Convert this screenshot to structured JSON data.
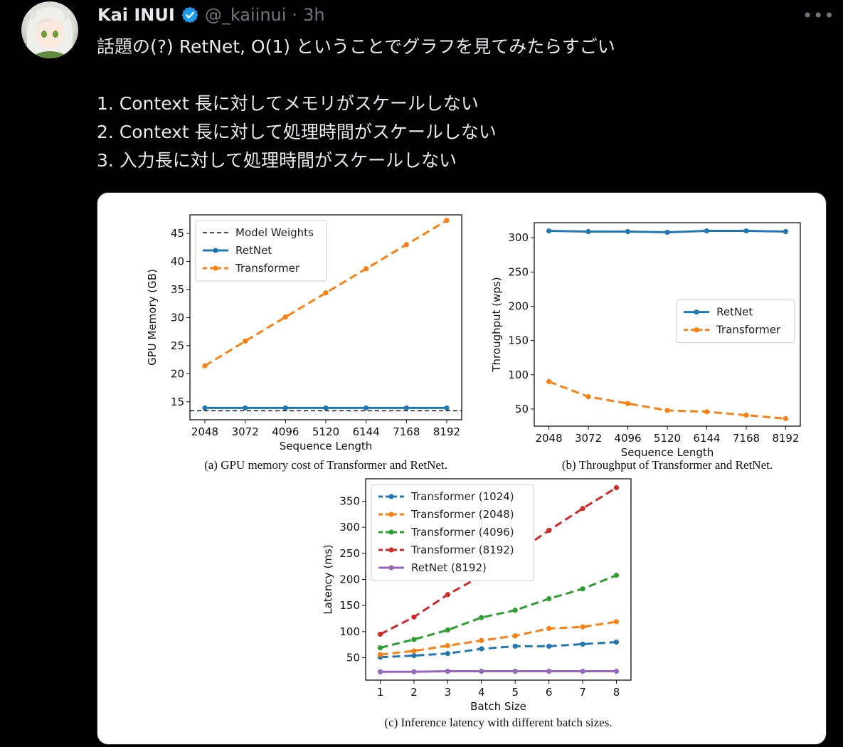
{
  "author": {
    "name": "Kai INUI",
    "handle": "@_kaiinui",
    "time_sep": "·",
    "time": "3h",
    "more": "•••"
  },
  "tweet": {
    "lines": [
      "話題の(?) RetNet, O(1) ということでグラフを見てみたらすごい",
      "",
      "1. Context 長に対してメモリがスケールしない",
      "2. Context 長に対して処理時間がスケールしない",
      "3. 入力長に対して処理時間がスケールしない"
    ]
  },
  "colors": {
    "blue": "#1f77b4",
    "orange": "#ff7f0e",
    "green": "#2ca02c",
    "red": "#d62728",
    "purple": "#9467bd",
    "verified": "#1d9bf0"
  },
  "chart_data": [
    {
      "type": "line",
      "caption": "(a) GPU memory cost of Transformer and RetNet.",
      "xlabel": "Sequence Length",
      "ylabel": "GPU Memory (GB)",
      "x": [
        2048,
        3072,
        4096,
        5120,
        6144,
        7168,
        8192
      ],
      "yticks": [
        15,
        20,
        25,
        30,
        35,
        40,
        45
      ],
      "ylim": [
        11.8,
        48.3
      ],
      "legend_position": "upper-left",
      "series": [
        {
          "name": "Model Weights",
          "style": "dashed-black",
          "values": [
            13.4,
            13.4,
            13.4,
            13.4,
            13.4,
            13.4,
            13.4
          ]
        },
        {
          "name": "RetNet",
          "style": "solid-blue",
          "values": [
            13.9,
            13.9,
            13.9,
            13.9,
            13.9,
            13.9,
            13.9
          ]
        },
        {
          "name": "Transformer",
          "style": "dashed-orange",
          "values": [
            21.4,
            25.8,
            30.1,
            34.4,
            38.7,
            43.0,
            47.3
          ]
        }
      ]
    },
    {
      "type": "line",
      "caption": "(b) Throughput of Transformer and RetNet.",
      "xlabel": "Sequence Length",
      "ylabel": "Throughput (wps)",
      "x": [
        2048,
        3072,
        4096,
        5120,
        6144,
        7168,
        8192
      ],
      "yticks": [
        50,
        100,
        150,
        200,
        250,
        300
      ],
      "ylim": [
        25,
        322
      ],
      "legend_position": "center-right",
      "series": [
        {
          "name": "RetNet",
          "style": "solid-blue",
          "values": [
            310,
            309,
            309,
            308,
            310,
            310,
            309
          ]
        },
        {
          "name": "Transformer",
          "style": "dashed-orange",
          "values": [
            90,
            68,
            58,
            48,
            46,
            41,
            36
          ]
        }
      ]
    },
    {
      "type": "line",
      "caption": "(c) Inference latency with different batch sizes.",
      "xlabel": "Batch Size",
      "ylabel": "Latency (ms)",
      "x": [
        1,
        2,
        3,
        4,
        5,
        6,
        7,
        8
      ],
      "yticks": [
        50,
        100,
        150,
        200,
        250,
        300,
        350
      ],
      "ylim": [
        7,
        393
      ],
      "legend_position": "upper-left",
      "series": [
        {
          "name": "Transformer (1024)",
          "style": "dashed-blue",
          "values": [
            51,
            54,
            58,
            67,
            72,
            72,
            76,
            80
          ]
        },
        {
          "name": "Transformer (2048)",
          "style": "dashed-orange",
          "values": [
            56,
            63,
            73,
            83,
            92,
            106,
            109,
            119
          ]
        },
        {
          "name": "Transformer (4096)",
          "style": "dashed-green",
          "values": [
            69,
            85,
            103,
            127,
            141,
            163,
            182,
            208
          ]
        },
        {
          "name": "Transformer (8192)",
          "style": "dashed-red",
          "values": [
            95,
            128,
            171,
            207,
            250,
            294,
            336,
            376
          ]
        },
        {
          "name": "RetNet (8192)",
          "style": "solid-purple",
          "values": [
            23,
            23,
            24,
            24,
            24,
            24,
            24,
            24
          ]
        }
      ]
    }
  ]
}
